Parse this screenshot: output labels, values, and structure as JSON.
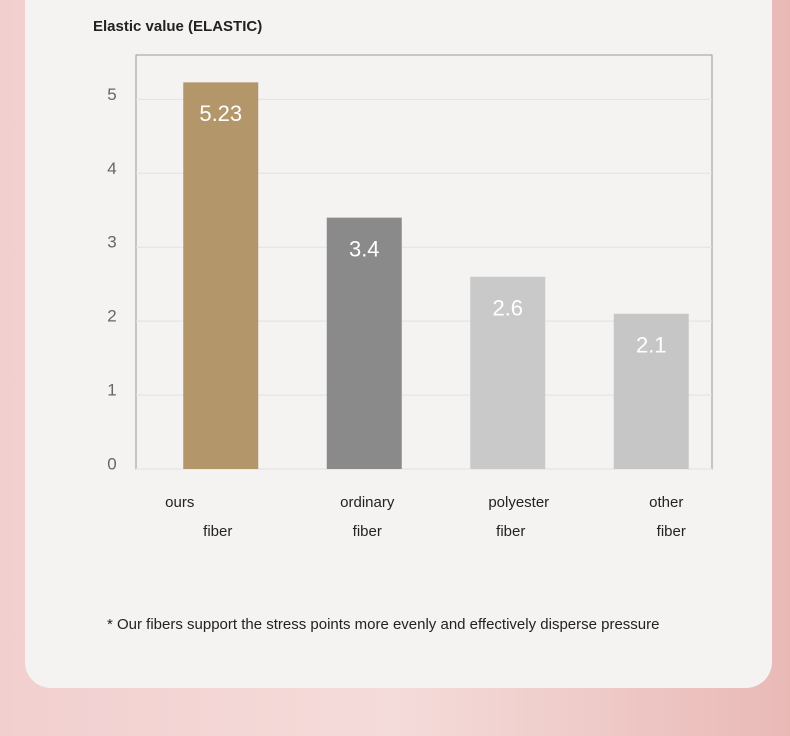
{
  "chart_data": {
    "type": "bar",
    "title": "Elastic value (ELASTIC)",
    "categories": [
      [
        "ours",
        "fiber"
      ],
      [
        "ordinary",
        "fiber"
      ],
      [
        "polyester",
        "fiber"
      ],
      [
        "other",
        "fiber"
      ]
    ],
    "values": [
      5.23,
      3.4,
      2.6,
      2.1
    ],
    "colors": [
      "#b39669",
      "#8a8a8a",
      "#c9c9c9",
      "#c6c6c6"
    ],
    "ylim": [
      0,
      5.6
    ],
    "yticks": [
      0,
      1,
      2,
      3,
      4,
      5
    ],
    "grid": true,
    "annotation": "* Our fibers support the stress points more evenly and effectively disperse pressure"
  }
}
